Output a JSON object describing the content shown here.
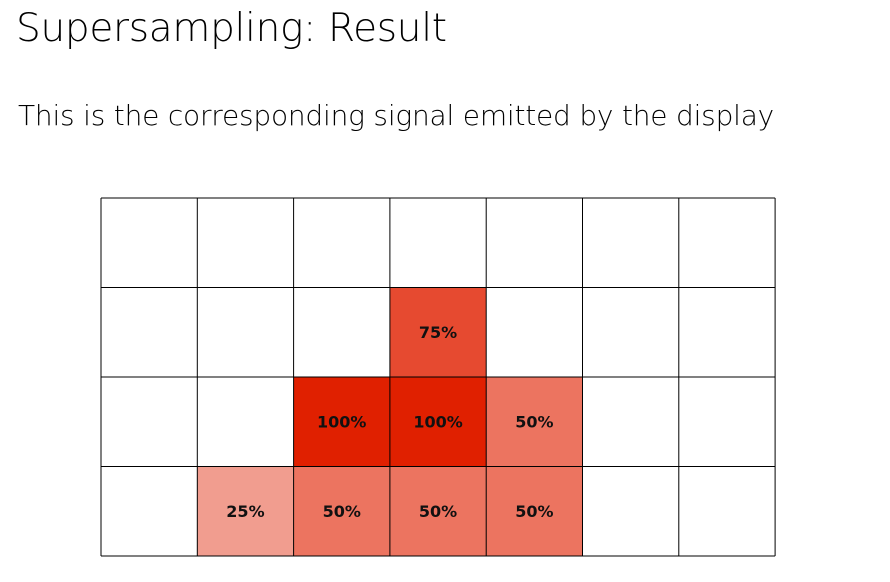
{
  "slide": {
    "title": "Supersampling: Result",
    "subtitle": "This is the corresponding signal emitted by the display"
  },
  "grid": {
    "columns": 7,
    "rows": 4,
    "fill_color": "#e02000",
    "line_color": "#000000",
    "cells": [
      [
        0,
        0,
        0,
        0,
        0,
        0,
        0
      ],
      [
        0,
        0,
        0,
        75,
        0,
        0,
        0
      ],
      [
        0,
        0,
        100,
        100,
        50,
        0,
        0
      ],
      [
        0,
        25,
        50,
        50,
        50,
        0,
        0
      ]
    ],
    "labels": [
      [
        "",
        "",
        "",
        "",
        "",
        "",
        ""
      ],
      [
        "",
        "",
        "",
        "75%",
        "",
        "",
        ""
      ],
      [
        "",
        "",
        "100%",
        "100%",
        "50%",
        "",
        ""
      ],
      [
        "",
        "25%",
        "50%",
        "50%",
        "50%",
        "",
        ""
      ]
    ]
  }
}
